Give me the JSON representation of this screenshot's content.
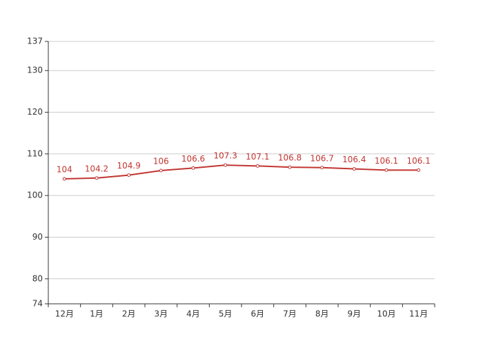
{
  "chart_data": {
    "type": "line",
    "categories": [
      "12月",
      "1月",
      "2月",
      "3月",
      "4月",
      "5月",
      "6月",
      "7月",
      "8月",
      "9月",
      "10月",
      "11月"
    ],
    "values": [
      104,
      104.2,
      104.9,
      106,
      106.6,
      107.3,
      107.1,
      106.8,
      106.7,
      106.4,
      106.1,
      106.1
    ],
    "color": "#c23531",
    "ylim": [
      74,
      137
    ],
    "yticks": [
      74,
      80,
      90,
      100,
      110,
      120,
      130,
      137
    ],
    "grid": true
  }
}
